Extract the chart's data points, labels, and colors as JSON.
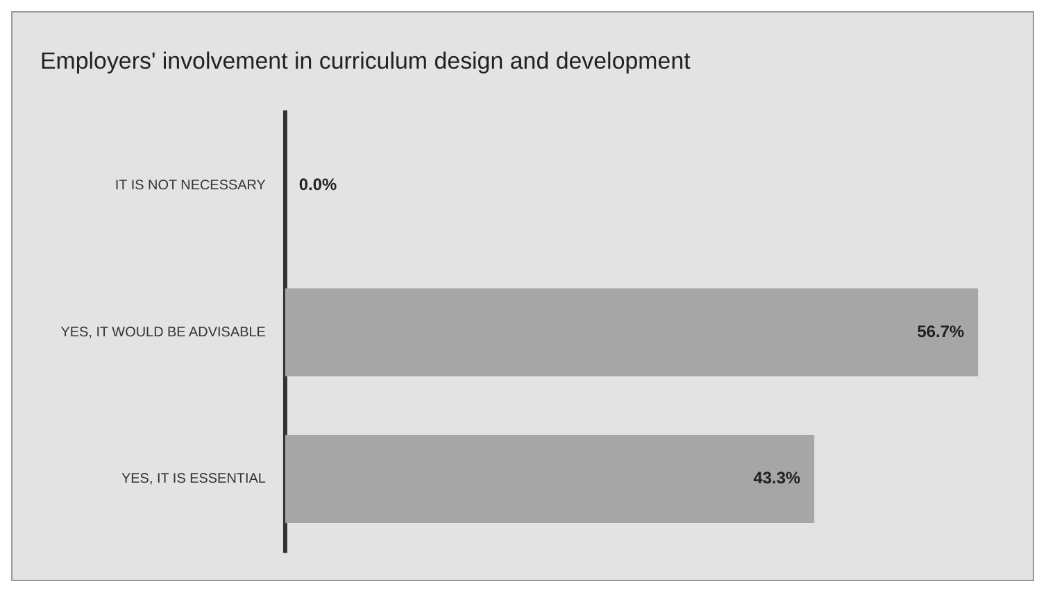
{
  "chart_data": {
    "type": "bar",
    "orientation": "horizontal",
    "title": "Employers' involvement in curriculum design and development",
    "categories": [
      "IT IS NOT NECESSARY",
      "YES, IT WOULD BE ADVISABLE",
      "YES, IT IS ESSENTIAL"
    ],
    "values": [
      0.0,
      56.7,
      43.3
    ],
    "value_labels": [
      "0.0%",
      "56.7%",
      "43.3%"
    ],
    "color": "#a6a6a6"
  }
}
